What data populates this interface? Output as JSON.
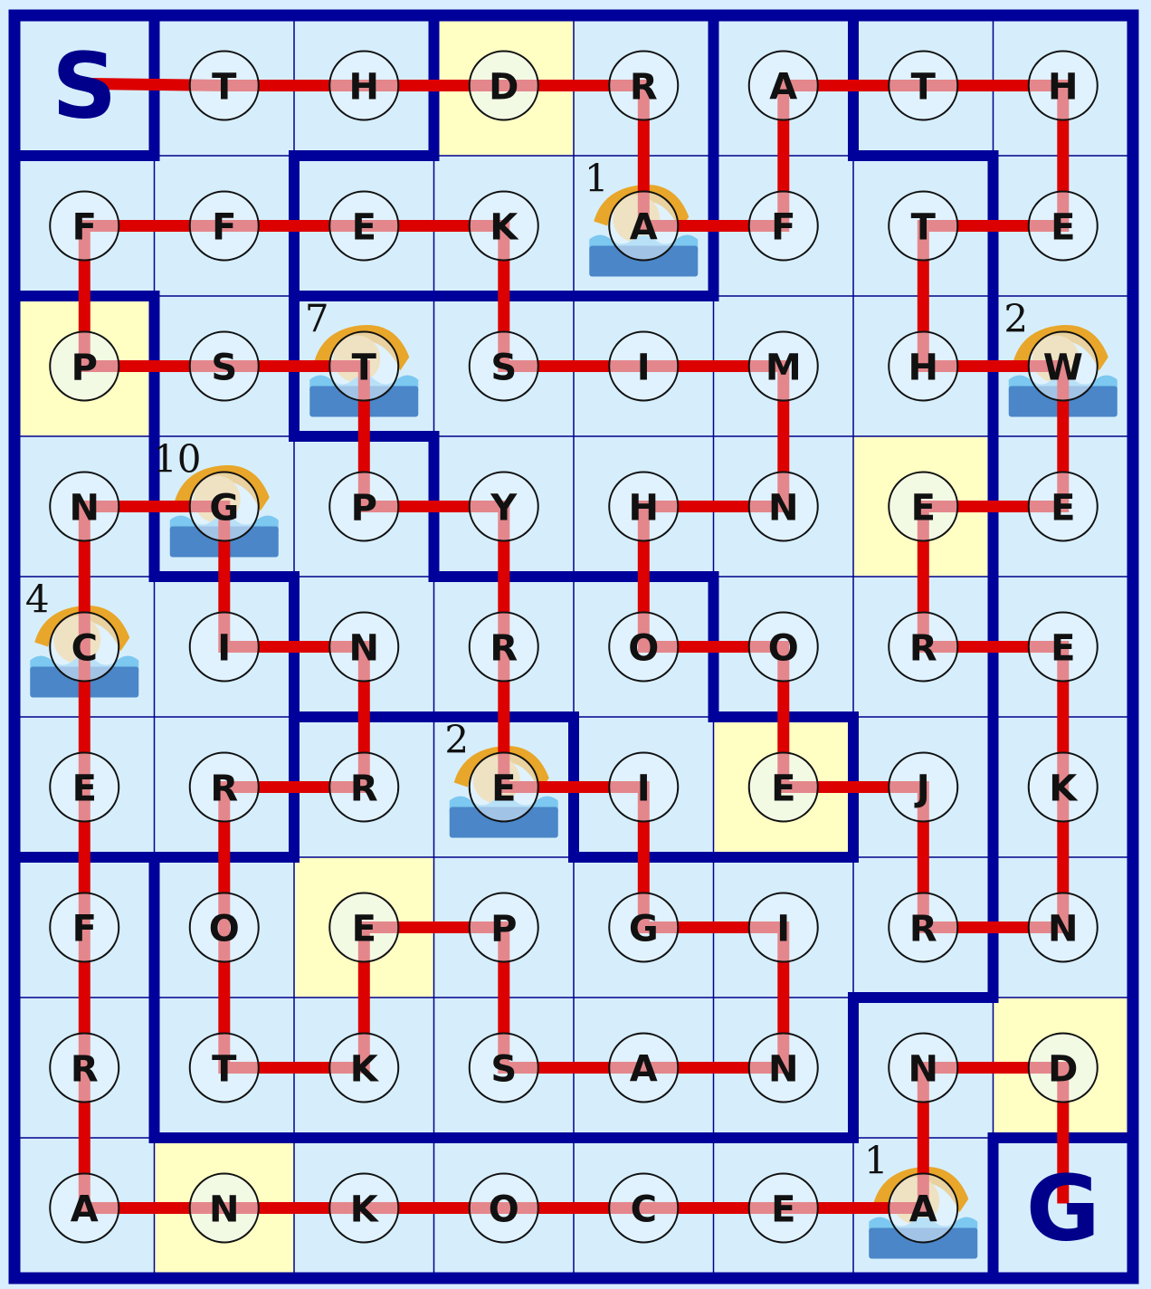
{
  "grid": {
    "cols": 8,
    "rows": 9,
    "letters": [
      [
        "S",
        "T",
        "H",
        "D",
        "R",
        "A",
        "T",
        "H"
      ],
      [
        "F",
        "F",
        "E",
        "K",
        "A",
        "F",
        "T",
        "E"
      ],
      [
        "P",
        "S",
        "T",
        "S",
        "I",
        "M",
        "H",
        "W"
      ],
      [
        "N",
        "G",
        "P",
        "Y",
        "H",
        "N",
        "E",
        "E"
      ],
      [
        "C",
        "I",
        "N",
        "R",
        "O",
        "O",
        "R",
        "E"
      ],
      [
        "E",
        "R",
        "R",
        "E",
        "I",
        "E",
        "J",
        "K"
      ],
      [
        "F",
        "O",
        "E",
        "P",
        "G",
        "I",
        "R",
        "N"
      ],
      [
        "R",
        "T",
        "K",
        "S",
        "A",
        "N",
        "N",
        "D"
      ],
      [
        "A",
        "N",
        "K",
        "O",
        "C",
        "E",
        "A",
        "G"
      ]
    ],
    "start_label": "S",
    "goal_label": "G"
  },
  "highlights": [
    [
      0,
      3
    ],
    [
      2,
      0
    ],
    [
      3,
      6
    ],
    [
      5,
      5
    ],
    [
      6,
      2
    ],
    [
      7,
      7
    ],
    [
      8,
      1
    ]
  ],
  "swimmers": [
    {
      "cell": [
        1,
        4
      ],
      "count": "1"
    },
    {
      "cell": [
        2,
        2
      ],
      "count": "7"
    },
    {
      "cell": [
        2,
        7
      ],
      "count": "2"
    },
    {
      "cell": [
        3,
        1
      ],
      "count": "10"
    },
    {
      "cell": [
        4,
        0
      ],
      "count": "4"
    },
    {
      "cell": [
        5,
        3
      ],
      "count": "2"
    },
    {
      "cell": [
        8,
        6
      ],
      "count": "1"
    }
  ],
  "path": [
    [
      0,
      0
    ],
    [
      0,
      1
    ],
    [
      0,
      2
    ],
    [
      0,
      3
    ],
    [
      0,
      4
    ],
    [
      1,
      4
    ],
    [
      1,
      5
    ],
    [
      0,
      5
    ],
    [
      0,
      6
    ],
    [
      0,
      7
    ],
    [
      1,
      7
    ],
    [
      1,
      6
    ],
    [
      2,
      6
    ],
    [
      2,
      7
    ],
    [
      3,
      7
    ],
    [
      3,
      6
    ],
    [
      4,
      6
    ],
    [
      4,
      7
    ],
    [
      5,
      7
    ],
    [
      6,
      7
    ],
    [
      6,
      6
    ],
    [
      5,
      6
    ],
    [
      5,
      5
    ],
    [
      4,
      5
    ],
    [
      4,
      4
    ],
    [
      3,
      4
    ],
    [
      3,
      5
    ],
    [
      2,
      5
    ],
    [
      2,
      4
    ],
    [
      2,
      3
    ],
    [
      1,
      3
    ],
    [
      1,
      2
    ],
    [
      1,
      1
    ],
    [
      1,
      0
    ],
    [
      2,
      0
    ],
    [
      2,
      1
    ],
    [
      2,
      2
    ],
    [
      3,
      2
    ],
    [
      3,
      3
    ],
    [
      4,
      3
    ],
    [
      5,
      3
    ],
    [
      5,
      4
    ],
    [
      6,
      4
    ],
    [
      6,
      5
    ],
    [
      7,
      5
    ],
    [
      7,
      4
    ],
    [
      7,
      3
    ],
    [
      6,
      3
    ],
    [
      6,
      2
    ],
    [
      7,
      2
    ],
    [
      7,
      1
    ],
    [
      6,
      1
    ],
    [
      5,
      1
    ],
    [
      5,
      2
    ],
    [
      4,
      2
    ],
    [
      4,
      1
    ],
    [
      3,
      1
    ],
    [
      3,
      0
    ],
    [
      4,
      0
    ],
    [
      5,
      0
    ],
    [
      6,
      0
    ],
    [
      7,
      0
    ],
    [
      8,
      0
    ],
    [
      8,
      1
    ],
    [
      8,
      2
    ],
    [
      8,
      3
    ],
    [
      8,
      4
    ],
    [
      8,
      5
    ],
    [
      8,
      6
    ],
    [
      7,
      6
    ],
    [
      7,
      7
    ],
    [
      8,
      7
    ]
  ],
  "colors": {
    "background": "#d9efff",
    "cell": "#d6eefc",
    "highlight": "#ffffc4",
    "grid_line": "#00008b",
    "wall": "#00009a",
    "path": "#dd0000",
    "path_inner": "#f08c8c",
    "token_fill": "#eaf6ff",
    "water_dark": "#4a86c8",
    "water_light": "#7cc8f0",
    "swimmer_cap": "#e8a62a"
  },
  "icons": {
    "swimmer": "swimmer-icon"
  }
}
